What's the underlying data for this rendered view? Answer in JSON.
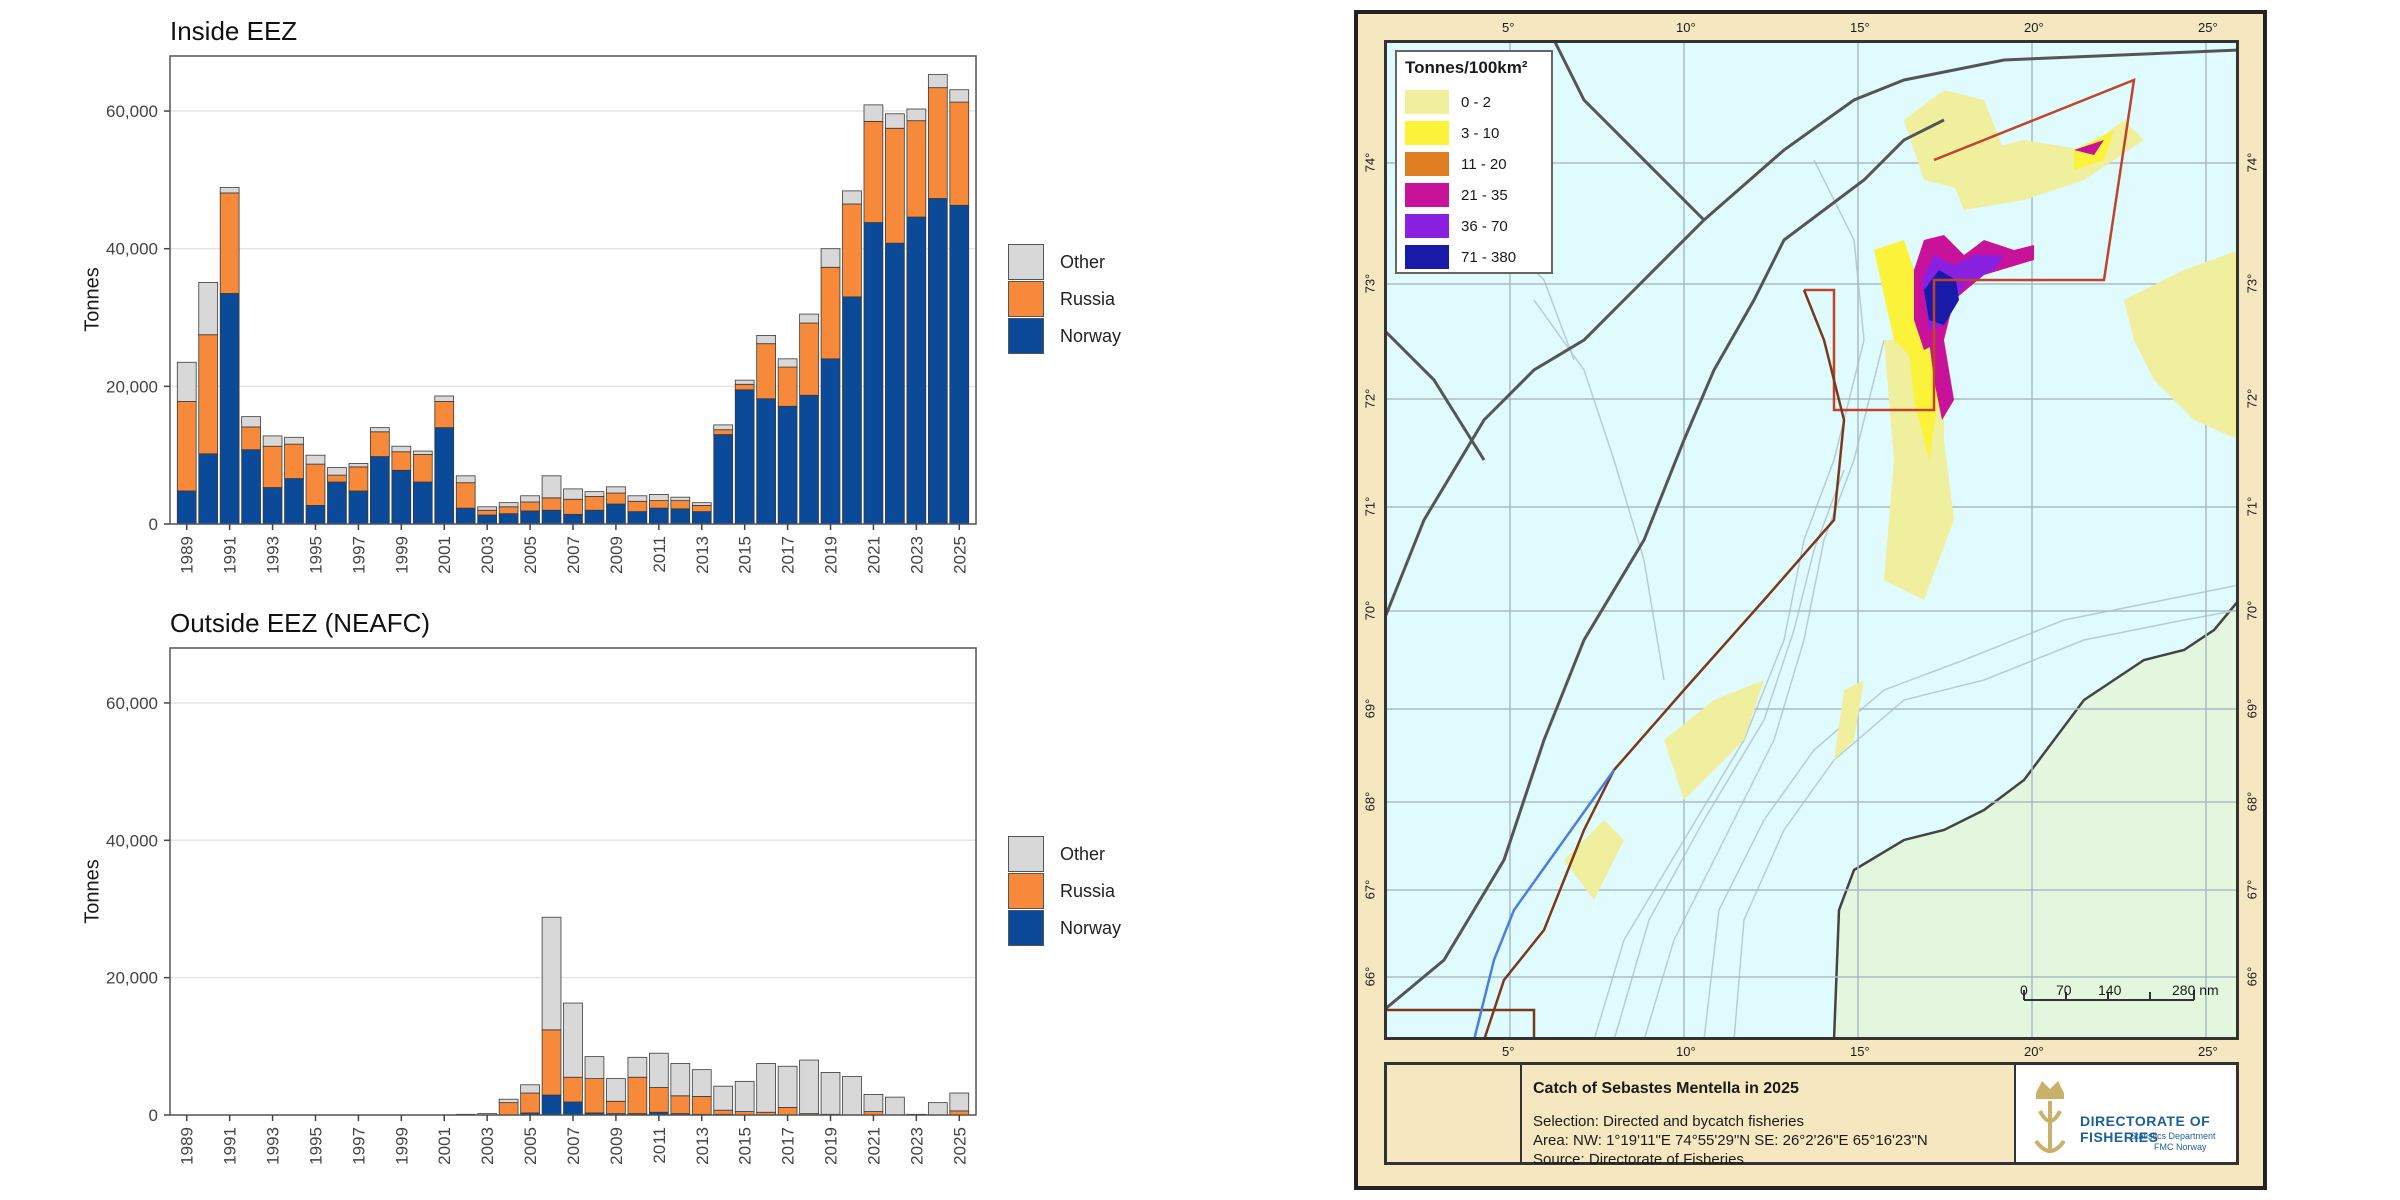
{
  "chart_data": [
    {
      "type": "bar",
      "stacked": true,
      "title": "Inside EEZ",
      "xlabel": "",
      "ylabel": "Tonnes",
      "ylim": [
        0,
        68000
      ],
      "yticks": [
        0,
        20000,
        40000,
        60000
      ],
      "ytick_labels": [
        "0",
        "20,000",
        "40,000",
        "60,000"
      ],
      "x": [
        1989,
        1990,
        1991,
        1992,
        1993,
        1994,
        1995,
        1996,
        1997,
        1998,
        1999,
        2000,
        2001,
        2002,
        2003,
        2004,
        2005,
        2006,
        2007,
        2008,
        2009,
        2010,
        2011,
        2012,
        2013,
        2014,
        2015,
        2016,
        2017,
        2018,
        2019,
        2020,
        2021,
        2022,
        2023,
        2024,
        2025
      ],
      "xtick_labels": [
        "1989",
        "1991",
        "1993",
        "1995",
        "1997",
        "1999",
        "2001",
        "2003",
        "2005",
        "2007",
        "2009",
        "2011",
        "2013",
        "2015",
        "2017",
        "2019",
        "2021",
        "2023",
        "2025"
      ],
      "grid": true,
      "legend": "right",
      "series": [
        {
          "name": "Norway",
          "color": "#0b4a98",
          "values": [
            4800,
            10200,
            33500,
            10800,
            5300,
            6600,
            2700,
            6100,
            4800,
            9800,
            7800,
            6100,
            14000,
            2300,
            1300,
            1500,
            1900,
            2000,
            1400,
            2000,
            2900,
            1800,
            2300,
            2200,
            1800,
            13000,
            19500,
            18200,
            17100,
            18700,
            24000,
            33000,
            43800,
            40800,
            44600,
            47300,
            46300
          ]
        },
        {
          "name": "Russia",
          "color": "#f6893a",
          "values": [
            13000,
            17300,
            14600,
            3300,
            6000,
            5000,
            6000,
            1000,
            3500,
            3600,
            2700,
            4000,
            3800,
            3700,
            700,
            1000,
            1300,
            1800,
            2200,
            2000,
            1600,
            1500,
            1100,
            1200,
            900,
            700,
            800,
            8000,
            5700,
            10500,
            13300,
            13500,
            14700,
            16700,
            14000,
            16100,
            15000
          ]
        },
        {
          "name": "Other",
          "color": "#d8d8d8",
          "values": [
            5700,
            7600,
            800,
            1500,
            1500,
            1000,
            1300,
            1100,
            500,
            600,
            800,
            500,
            800,
            1000,
            500,
            600,
            900,
            3200,
            1500,
            700,
            900,
            800,
            900,
            500,
            400,
            700,
            600,
            1200,
            1200,
            1300,
            2700,
            1900,
            2400,
            2100,
            1700,
            1900,
            1800
          ]
        }
      ]
    },
    {
      "type": "bar",
      "stacked": true,
      "title": "Outside EEZ (NEAFC)",
      "xlabel": "",
      "ylabel": "Tonnes",
      "ylim": [
        0,
        68000
      ],
      "yticks": [
        0,
        20000,
        40000,
        60000
      ],
      "ytick_labels": [
        "0",
        "20,000",
        "40,000",
        "60,000"
      ],
      "x": [
        1989,
        1990,
        1991,
        1992,
        1993,
        1994,
        1995,
        1996,
        1997,
        1998,
        1999,
        2000,
        2001,
        2002,
        2003,
        2004,
        2005,
        2006,
        2007,
        2008,
        2009,
        2010,
        2011,
        2012,
        2013,
        2014,
        2015,
        2016,
        2017,
        2018,
        2019,
        2020,
        2021,
        2022,
        2023,
        2024,
        2025
      ],
      "xtick_labels": [
        "1989",
        "1991",
        "1993",
        "1995",
        "1997",
        "1999",
        "2001",
        "2003",
        "2005",
        "2007",
        "2009",
        "2011",
        "2013",
        "2015",
        "2017",
        "2019",
        "2021",
        "2023",
        "2025"
      ],
      "grid": true,
      "legend": "right",
      "series": [
        {
          "name": "Norway",
          "color": "#0b4a98",
          "values": [
            0,
            0,
            0,
            0,
            0,
            0,
            0,
            0,
            0,
            0,
            0,
            0,
            0,
            0,
            0,
            0,
            300,
            2900,
            1900,
            300,
            200,
            200,
            400,
            200,
            100,
            100,
            0,
            0,
            0,
            0,
            0,
            0,
            0,
            0,
            0,
            0,
            0
          ]
        },
        {
          "name": "Russia",
          "color": "#f6893a",
          "values": [
            0,
            0,
            0,
            0,
            0,
            0,
            0,
            0,
            0,
            0,
            0,
            0,
            0,
            0,
            0,
            1800,
            2900,
            9500,
            3600,
            5000,
            1800,
            5300,
            3600,
            2600,
            2600,
            600,
            500,
            400,
            1100,
            200,
            100,
            0,
            500,
            0,
            0,
            0,
            600
          ]
        },
        {
          "name": "Other",
          "color": "#d8d8d8",
          "values": [
            0,
            0,
            0,
            0,
            0,
            0,
            0,
            0,
            0,
            0,
            0,
            0,
            0,
            100,
            200,
            500,
            1200,
            16400,
            10800,
            3200,
            3300,
            2900,
            5000,
            4700,
            3900,
            3500,
            4400,
            7100,
            6000,
            7800,
            6100,
            5600,
            2500,
            2600,
            100,
            1800,
            2600
          ]
        }
      ]
    }
  ],
  "legend_labels": [
    "Other",
    "Russia",
    "Norway"
  ],
  "legend_colors": {
    "Other": "#d8d8d8",
    "Russia": "#f6893a",
    "Norway": "#0b4a98"
  },
  "map": {
    "legend_title": "Tonnes/100km²",
    "legend_items": [
      {
        "label": "0 - 2",
        "color": "#f0ef9e"
      },
      {
        "label": "3 - 10",
        "color": "#fbf23a"
      },
      {
        "label": "11 - 20",
        "color": "#e07e22"
      },
      {
        "label": "21 - 35",
        "color": "#c8129a"
      },
      {
        "label": "36 - 70",
        "color": "#8a20e0"
      },
      {
        "label": "71 - 380",
        "color": "#1a1aa8"
      }
    ],
    "lon_labels": [
      "5°",
      "10°",
      "15°",
      "20°",
      "25°"
    ],
    "lat_labels": [
      "74°",
      "73°",
      "72°",
      "71°",
      "70°",
      "69°",
      "68°",
      "67°",
      "66°"
    ],
    "scale_labels": [
      "0",
      "70",
      "140",
      "280 nm"
    ],
    "info_title": "Catch of Sebastes Mentella in 2025",
    "info_selection": "Selection: Directed and bycatch fisheries",
    "info_area": "Area: NW: 1°19'11\"E  74°55'29\"N    SE: 26°2'26\"E  65°16'23\"N",
    "info_source": "Source: Directorate of Fisheries",
    "logo_title": "DIRECTORATE OF FISHERIES",
    "logo_sub1": "Statistics Department",
    "logo_sub2": "FMC Norway",
    "sea_color": "#e0fbfd",
    "land_color": "#e3f7de"
  }
}
